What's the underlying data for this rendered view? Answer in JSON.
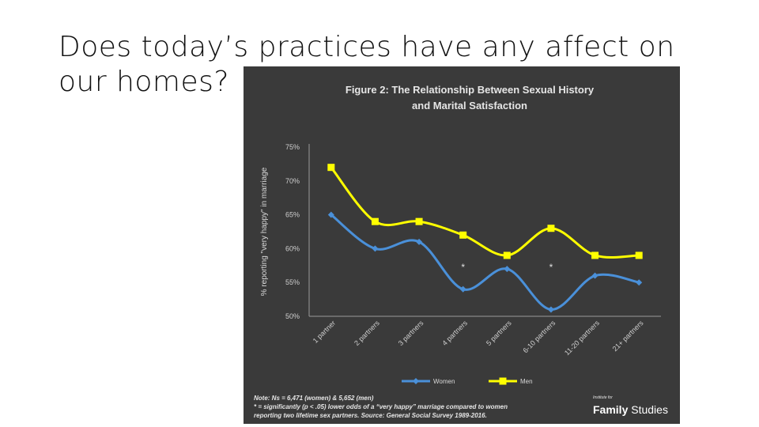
{
  "slide": {
    "title": "Does today’s practices have any affect on our homes?"
  },
  "chart_data": {
    "type": "line",
    "title": "Figure  2: The Relationship Between Sexual History",
    "subtitle": "and Marital Satisfaction",
    "ylabel": "% reporting \"very happy\" in marriage",
    "xlabel": "",
    "ylim": [
      50,
      75
    ],
    "ytick_values": [
      50,
      55,
      60,
      65,
      70,
      75
    ],
    "ytick_labels": [
      "50%",
      "55%",
      "60%",
      "65%",
      "70%",
      "75%"
    ],
    "categories": [
      "1 partner",
      "2 partners",
      "3 partners",
      "4 partners",
      "5 partners",
      "6-10 partners",
      "11-20 partners",
      "21+ partners"
    ],
    "series": [
      {
        "name": "Women",
        "color": "#4a90d9",
        "marker": "diamond",
        "values": [
          65,
          60,
          61,
          54,
          57,
          51,
          56,
          55
        ]
      },
      {
        "name": "Men",
        "color": "#ffff00",
        "marker": "square",
        "values": [
          72,
          64,
          64,
          62,
          59,
          63,
          59,
          59
        ]
      }
    ],
    "annotations": [
      {
        "text": "*",
        "category": "4 partners",
        "y": 56.8
      },
      {
        "text": "*",
        "category": "6-10 partners",
        "y": 56.8
      }
    ],
    "grid": false,
    "legend_position": "bottom",
    "notes": [
      "Note: Ns = 6,471 (women) & 5,652 (men)",
      "* = significantly (p < .05) lower odds of a “very happy” marriage compared to women",
      "reporting two lifetime sex partners.  Source: General Social Survey 1989-2016."
    ],
    "logo": {
      "small": "Institute for",
      "main_a": "Family",
      "main_b": " Studies"
    }
  }
}
